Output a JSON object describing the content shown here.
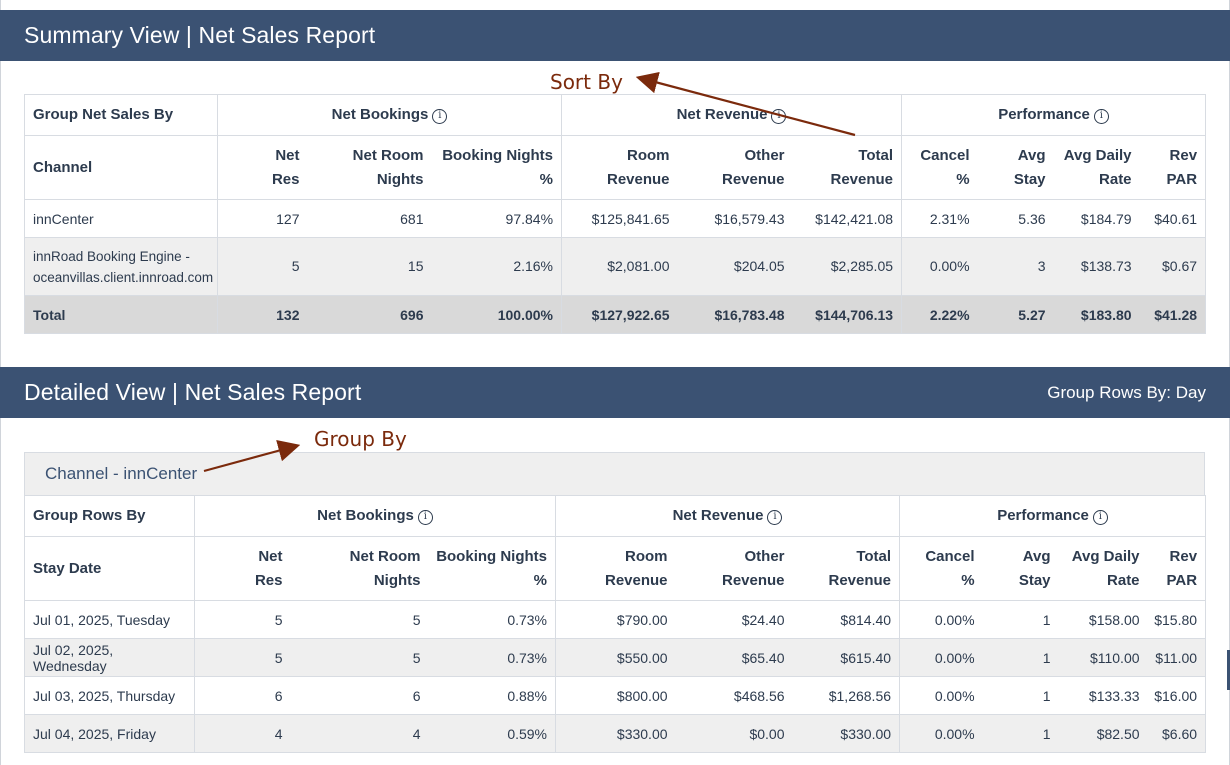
{
  "summary": {
    "title": "Summary View | Net Sales Report",
    "group_label": "Group Net Sales By",
    "groups": [
      "Net Bookings",
      "Net Revenue",
      "Performance"
    ],
    "first_col": "Channel",
    "columns": [
      [
        "Net",
        "Res"
      ],
      [
        "Net Room",
        "Nights"
      ],
      [
        "Booking Nights",
        "%"
      ],
      [
        "Room",
        "Revenue"
      ],
      [
        "Other",
        "Revenue"
      ],
      [
        "Total",
        "Revenue"
      ],
      [
        "Cancel",
        "%"
      ],
      [
        "Avg",
        "Stay"
      ],
      [
        "Avg Daily",
        "Rate"
      ],
      [
        "Rev",
        "PAR"
      ]
    ],
    "rows": [
      {
        "label": "innCenter",
        "label2": "",
        "values": [
          "127",
          "681",
          "97.84%",
          "$125,841.65",
          "$16,579.43",
          "$142,421.08",
          "2.31%",
          "5.36",
          "$184.79",
          "$40.61"
        ]
      },
      {
        "label": "innRoad Booking Engine -",
        "label2": "oceanvillas.client.innroad.com",
        "values": [
          "5",
          "15",
          "2.16%",
          "$2,081.00",
          "$204.05",
          "$2,285.05",
          "0.00%",
          "3",
          "$138.73",
          "$0.67"
        ]
      }
    ],
    "total": {
      "label": "Total",
      "values": [
        "132",
        "696",
        "100.00%",
        "$127,922.65",
        "$16,783.48",
        "$144,706.13",
        "2.22%",
        "5.27",
        "$183.80",
        "$41.28"
      ]
    }
  },
  "detail": {
    "title": "Detailed View | Net Sales Report",
    "group_rows_by": "Group Rows By: Day",
    "caption": "Channel - innCenter",
    "group_label": "Group Rows By",
    "first_col": "Stay Date",
    "groups": [
      "Net Bookings",
      "Net Revenue",
      "Performance"
    ],
    "columns": [
      [
        "Net",
        "Res"
      ],
      [
        "Net Room",
        "Nights"
      ],
      [
        "Booking Nights",
        "%"
      ],
      [
        "Room",
        "Revenue"
      ],
      [
        "Other",
        "Revenue"
      ],
      [
        "Total",
        "Revenue"
      ],
      [
        "Cancel",
        "%"
      ],
      [
        "Avg",
        "Stay"
      ],
      [
        "Avg Daily",
        "Rate"
      ],
      [
        "Rev",
        "PAR"
      ]
    ],
    "rows": [
      {
        "label": "Jul 01, 2025, Tuesday",
        "values": [
          "5",
          "5",
          "0.73%",
          "$790.00",
          "$24.40",
          "$814.40",
          "0.00%",
          "1",
          "$158.00",
          "$15.80"
        ]
      },
      {
        "label": "Jul 02, 2025, Wednesday",
        "values": [
          "5",
          "5",
          "0.73%",
          "$550.00",
          "$65.40",
          "$615.40",
          "0.00%",
          "1",
          "$110.00",
          "$11.00"
        ]
      },
      {
        "label": "Jul 03, 2025, Thursday",
        "values": [
          "6",
          "6",
          "0.88%",
          "$800.00",
          "$468.56",
          "$1,268.56",
          "0.00%",
          "1",
          "$133.33",
          "$16.00"
        ]
      },
      {
        "label": "Jul 04, 2025, Friday",
        "values": [
          "4",
          "4",
          "0.59%",
          "$330.00",
          "$0.00",
          "$330.00",
          "0.00%",
          "1",
          "$82.50",
          "$6.60"
        ]
      }
    ]
  },
  "annotations": {
    "sort_by": "Sort By",
    "group_by": "Group By"
  },
  "icons": {
    "info": "info-icon"
  },
  "colors": {
    "header_bar": "#3b5273",
    "annotation": "#7b2a0c",
    "total_row": "#d9d9d9",
    "alt_row": "#efefef"
  }
}
